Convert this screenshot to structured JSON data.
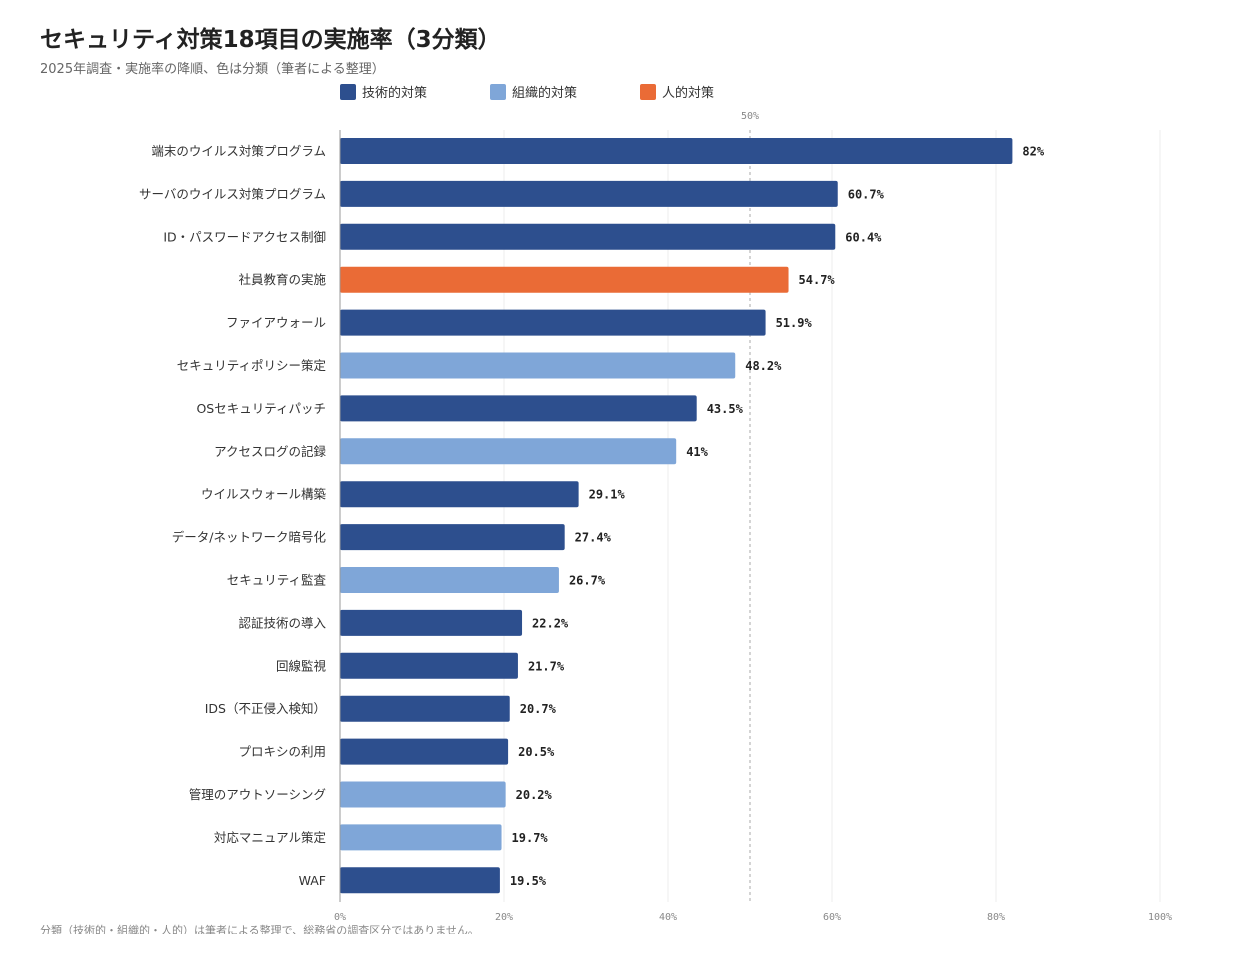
{
  "chart_data": {
    "type": "bar",
    "orientation": "horizontal",
    "title": "セキュリティ対策18項目の実施率（3分類）",
    "subtitle": "2025年調査・実施率の降順、色は分類（筆者による整理）",
    "footnote": "分類（技術的・組織的・人的）は筆者による整理で、総務省の調査区分ではありません。",
    "legend_position": "top",
    "grid": true,
    "xlim": [
      0,
      100
    ],
    "x_ticks": [
      {
        "value": 0,
        "label": "0%"
      },
      {
        "value": 20,
        "label": "20%"
      },
      {
        "value": 40,
        "label": "40%"
      },
      {
        "value": 60,
        "label": "60%"
      },
      {
        "value": 80,
        "label": "80%"
      },
      {
        "value": 100,
        "label": "100%"
      }
    ],
    "reference_line": {
      "value": 50,
      "label": "50%"
    },
    "groups": [
      {
        "key": "tech",
        "name": "技術的対策",
        "color": "#2d4f8e"
      },
      {
        "key": "org",
        "name": "組織的対策",
        "color": "#7fa6d8"
      },
      {
        "key": "human",
        "name": "人的対策",
        "color": "#ea6b36"
      }
    ],
    "bars": [
      {
        "category": "端末のウイルス対策プログラム",
        "value": 82,
        "label": "82%",
        "group": "tech"
      },
      {
        "category": "サーバのウイルス対策プログラム",
        "value": 60.7,
        "label": "60.7%",
        "group": "tech"
      },
      {
        "category": "ID・パスワードアクセス制御",
        "value": 60.4,
        "label": "60.4%",
        "group": "tech"
      },
      {
        "category": "社員教育の実施",
        "value": 54.7,
        "label": "54.7%",
        "group": "human"
      },
      {
        "category": "ファイアウォール",
        "value": 51.9,
        "label": "51.9%",
        "group": "tech"
      },
      {
        "category": "セキュリティポリシー策定",
        "value": 48.2,
        "label": "48.2%",
        "group": "org"
      },
      {
        "category": "OSセキュリティパッチ",
        "value": 43.5,
        "label": "43.5%",
        "group": "tech"
      },
      {
        "category": "アクセスログの記録",
        "value": 41,
        "label": "41%",
        "group": "org"
      },
      {
        "category": "ウイルスウォール構築",
        "value": 29.1,
        "label": "29.1%",
        "group": "tech"
      },
      {
        "category": "データ/ネットワーク暗号化",
        "value": 27.4,
        "label": "27.4%",
        "group": "tech"
      },
      {
        "category": "セキュリティ監査",
        "value": 26.7,
        "label": "26.7%",
        "group": "org"
      },
      {
        "category": "認証技術の導入",
        "value": 22.2,
        "label": "22.2%",
        "group": "tech"
      },
      {
        "category": "回線監視",
        "value": 21.7,
        "label": "21.7%",
        "group": "tech"
      },
      {
        "category": "IDS（不正侵入検知）",
        "value": 20.7,
        "label": "20.7%",
        "group": "tech"
      },
      {
        "category": "プロキシの利用",
        "value": 20.5,
        "label": "20.5%",
        "group": "tech"
      },
      {
        "category": "管理のアウトソーシング",
        "value": 20.2,
        "label": "20.2%",
        "group": "org"
      },
      {
        "category": "対応マニュアル策定",
        "value": 19.7,
        "label": "19.7%",
        "group": "org"
      },
      {
        "category": "WAF",
        "value": 19.5,
        "label": "19.5%",
        "group": "tech"
      }
    ]
  }
}
